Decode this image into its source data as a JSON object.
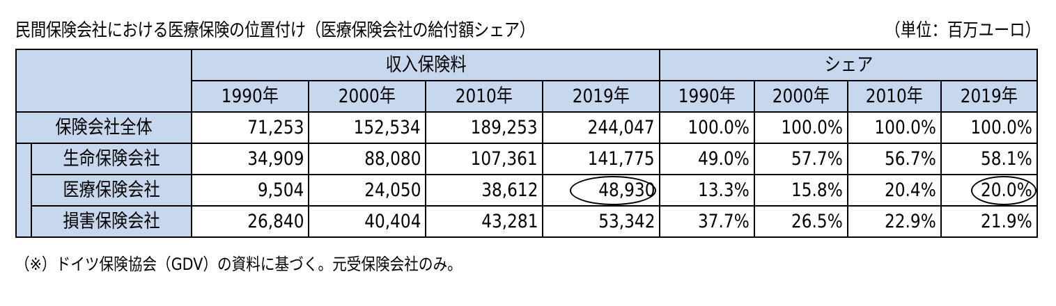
{
  "title": "民間保険会社における医療保険の位置付け（医療保険会社の給付額シェア）",
  "unit": "（単位：百万ユーロ）",
  "table": {
    "group_headers": [
      "収入保険料",
      "シェア"
    ],
    "year_headers": [
      "1990年",
      "2000年",
      "2010年",
      "2019年",
      "1990年",
      "2000年",
      "2010年",
      "2019年"
    ],
    "rows": [
      {
        "label": "保険会社全体",
        "values": [
          "71,253",
          "152,534",
          "189,253",
          "244,047",
          "100.0%",
          "100.0%",
          "100.0%",
          "100.0%"
        ]
      },
      {
        "label": "生命保険会社",
        "values": [
          "34,909",
          "88,080",
          "107,361",
          "141,775",
          "49.0%",
          "57.7%",
          "56.7%",
          "58.1%"
        ]
      },
      {
        "label": "医療保険会社",
        "values": [
          "9,504",
          "24,050",
          "38,612",
          "48,930",
          "13.3%",
          "15.8%",
          "20.4%",
          "20.0%"
        ]
      },
      {
        "label": "損害保険会社",
        "values": [
          "26,840",
          "40,404",
          "43,281",
          "53,342",
          "37.7%",
          "26.5%",
          "22.9%",
          "21.9%"
        ]
      }
    ]
  },
  "note": "（※）ドイツ保険協会（GDV）の資料に基づく。元受保険会社のみ。"
}
